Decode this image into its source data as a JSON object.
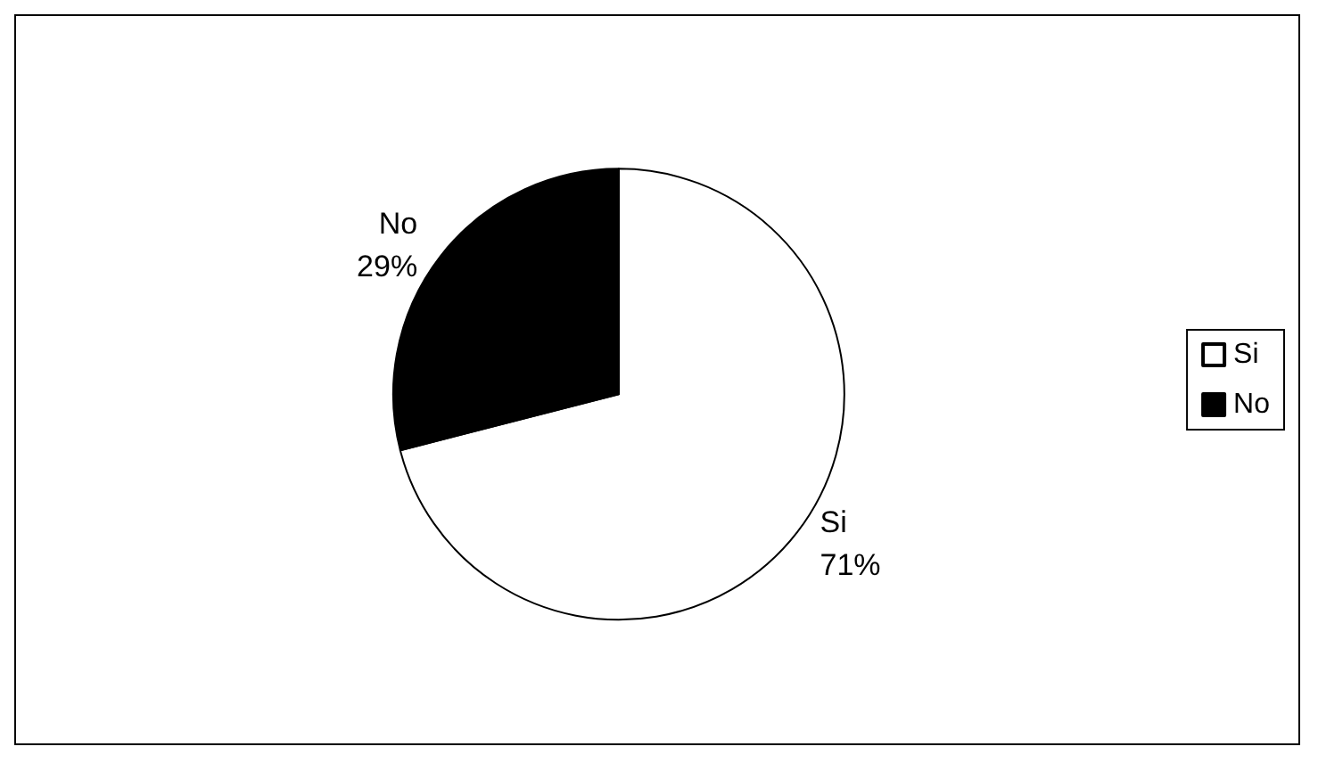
{
  "chart_data": {
    "type": "pie",
    "categories": [
      "Si",
      "No"
    ],
    "values": [
      71,
      29
    ],
    "colors": [
      "#ffffff",
      "#000000"
    ],
    "value_labels": [
      "71%",
      "29%"
    ],
    "legend": "right"
  }
}
